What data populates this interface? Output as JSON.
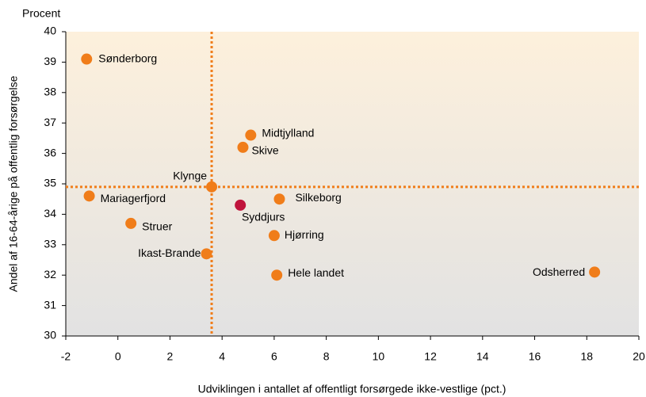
{
  "chart_data": {
    "type": "scatter",
    "title": "Procent",
    "x_label": "Udviklingen i antallet af offentligt forsørgede ikke-vestlige (pct.)",
    "y_label": "Andel af 16-64-årige på offentlig forsørgelse",
    "labels": [
      "Sønderborg",
      "Midtjylland",
      "Skive",
      "Klynge",
      "Mariagerfjord",
      "Syddjurs",
      "Silkeborg",
      "Struer",
      "Hjørring",
      "Ikast-Brande",
      "Hele landet",
      "Odsherred"
    ],
    "x": [
      -1.2,
      5.1,
      4.8,
      3.6,
      -1.1,
      4.7,
      6.2,
      0.5,
      6.0,
      3.4,
      6.1,
      18.3
    ],
    "y": [
      39.1,
      36.6,
      36.2,
      34.9,
      34.6,
      34.3,
      34.5,
      33.7,
      33.3,
      32.7,
      32.0,
      32.1
    ],
    "colors": [
      "#f07d1a",
      "#f07d1a",
      "#f07d1a",
      "#f07d1a",
      "#f07d1a",
      "#c0143c",
      "#f07d1a",
      "#f07d1a",
      "#f07d1a",
      "#f07d1a",
      "#f07d1a",
      "#f07d1a"
    ],
    "reference_x": 3.6,
    "reference_y": 34.9,
    "reference_color": "#f07d1a",
    "xlim": [
      -2,
      20
    ],
    "xticks": [
      -2,
      0,
      2,
      4,
      6,
      8,
      10,
      12,
      14,
      16,
      18,
      20
    ],
    "ylim": [
      30,
      40
    ],
    "yticks": [
      30,
      31,
      32,
      33,
      34,
      35,
      36,
      37,
      38,
      39,
      40
    ],
    "grid": false
  }
}
